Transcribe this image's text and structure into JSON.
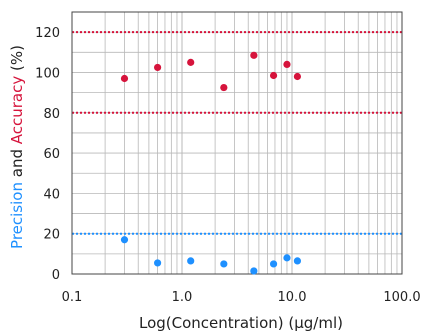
{
  "chart_data": {
    "type": "scatter",
    "xscale": "log",
    "xlim": [
      0.1,
      100.0
    ],
    "ylim": [
      0,
      130
    ],
    "x_tick_labels": [
      "0.1",
      "1.0",
      "10.0",
      "100.0"
    ],
    "x_ticks": [
      0.1,
      1.0,
      10.0,
      100.0
    ],
    "y_tick_labels": [
      "0",
      "20",
      "40",
      "60",
      "80",
      "100",
      "120"
    ],
    "y_ticks": [
      0,
      20,
      40,
      60,
      80,
      100,
      120
    ],
    "xlabel": "Log(Concentration) (µg/ml)",
    "ylabel": {
      "part1": "Precision",
      "part2": " and ",
      "part3": "Accuracy",
      "part4": " (%)"
    },
    "grid": true,
    "reference_lines": [
      {
        "y": 120,
        "color": "#d6143c",
        "style": "dotted"
      },
      {
        "y": 80,
        "color": "#d6143c",
        "style": "dotted"
      },
      {
        "y": 20,
        "color": "#1e90ff",
        "style": "dotted"
      }
    ],
    "series": [
      {
        "color": "#d6143c",
        "x": [
          0.3,
          0.6,
          1.2,
          2.4,
          4.5,
          6.8,
          9.0,
          11.2
        ],
        "y": [
          97,
          102.5,
          105,
          92.5,
          108.5,
          98.5,
          104,
          98
        ]
      },
      {
        "color": "#1e90ff",
        "x": [
          0.3,
          0.6,
          1.2,
          2.4,
          4.5,
          6.8,
          9.0,
          11.2
        ],
        "y": [
          17,
          5.5,
          6.5,
          5,
          1.5,
          5,
          8,
          6.5
        ]
      }
    ],
    "colors": {
      "precision": "#1e90ff",
      "accuracy": "#d6143c",
      "text": "#222222",
      "grid": "#b8b8b8",
      "axis": "#444444"
    }
  }
}
